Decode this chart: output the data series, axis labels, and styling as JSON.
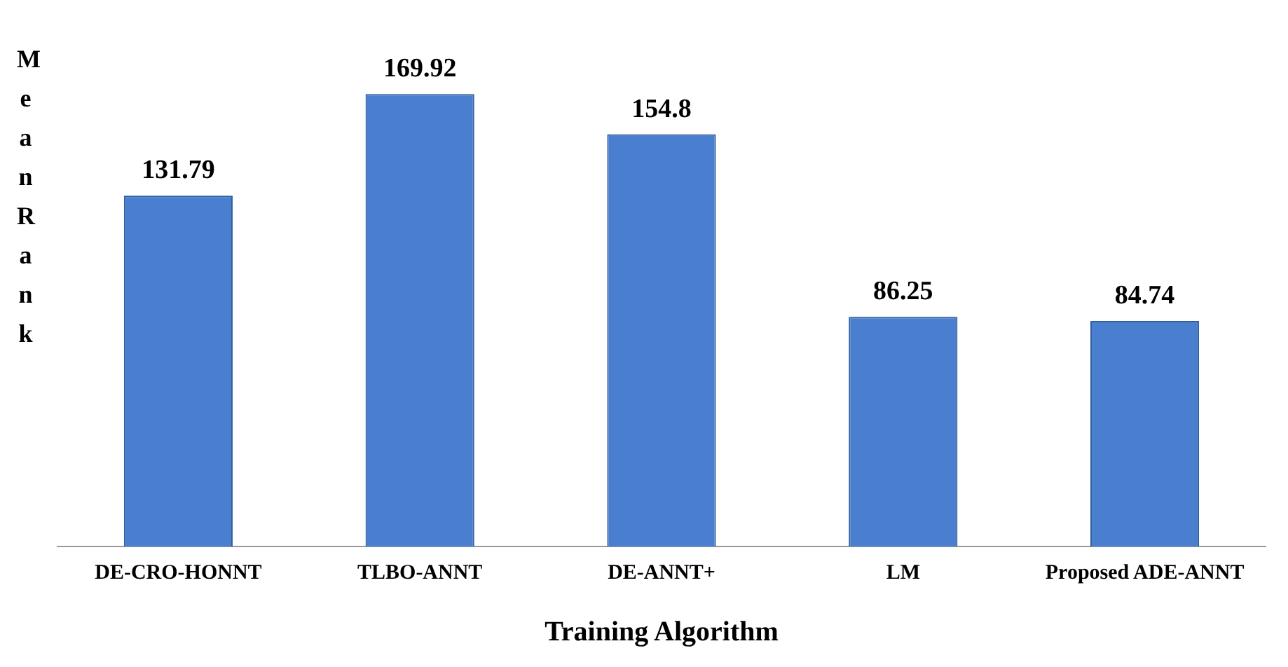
{
  "chart_data": {
    "type": "bar",
    "xlabel": "Training Algorithm",
    "ylabel": "Mean Rank",
    "categories": [
      "DE-CRO-HONNT",
      "TLBO-ANNT",
      "DE-ANNT+",
      "LM",
      "Proposed ADE-ANNT"
    ],
    "values": [
      131.79,
      169.92,
      154.8,
      86.25,
      84.74
    ],
    "color": "#4a7fd0",
    "data_labels": true,
    "grid": false,
    "legend": false
  }
}
